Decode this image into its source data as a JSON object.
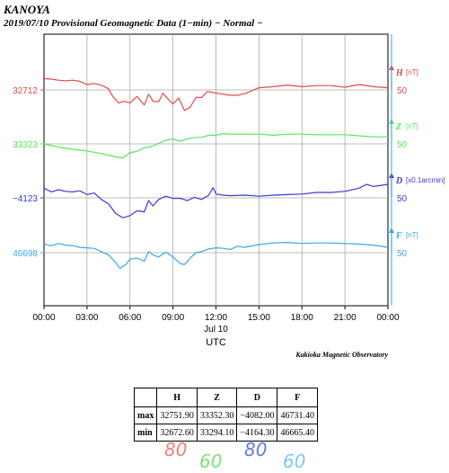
{
  "header": {
    "station": "KANOYA",
    "subtitle": "2019/07/10  Provisional Geomagnetic Data (1−min)  − Normal −"
  },
  "chart_data": {
    "type": "line",
    "x_tick_labels": [
      "00:00",
      "03:00",
      "06:00",
      "09:00",
      "12:00",
      "15:00",
      "18:00",
      "21:00",
      "00:00"
    ],
    "x_date_label": "Jul 10",
    "xlabel": "UTC",
    "x_range_hours": [
      0,
      24
    ],
    "grid": true,
    "series": [
      {
        "name": "H",
        "unit": "[nT]",
        "color": "#e8474b",
        "left_tick": "32712",
        "right_tick": "50",
        "points": [
          [
            0,
            32733
          ],
          [
            0.5,
            32732
          ],
          [
            1,
            32730
          ],
          [
            1.5,
            32729
          ],
          [
            2,
            32730
          ],
          [
            2.5,
            32728
          ],
          [
            3,
            32722
          ],
          [
            3.5,
            32724
          ],
          [
            4,
            32721
          ],
          [
            4.5,
            32714
          ],
          [
            4.8,
            32700
          ],
          [
            5.2,
            32688
          ],
          [
            5.6,
            32691
          ],
          [
            6,
            32688
          ],
          [
            6.5,
            32700
          ],
          [
            7,
            32684
          ],
          [
            7.3,
            32704
          ],
          [
            7.6,
            32691
          ],
          [
            8,
            32690
          ],
          [
            8.3,
            32706
          ],
          [
            8.7,
            32694
          ],
          [
            9,
            32686
          ],
          [
            9.4,
            32697
          ],
          [
            9.8,
            32674
          ],
          [
            10.2,
            32680
          ],
          [
            10.6,
            32698
          ],
          [
            11,
            32698
          ],
          [
            11.4,
            32709
          ],
          [
            11.8,
            32707
          ],
          [
            12.3,
            32705
          ],
          [
            13,
            32702
          ],
          [
            13.5,
            32702
          ],
          [
            14,
            32705
          ],
          [
            15,
            32716
          ],
          [
            16,
            32718
          ],
          [
            17,
            32721
          ],
          [
            18,
            32718
          ],
          [
            19,
            32720
          ],
          [
            20,
            32720
          ],
          [
            21,
            32717
          ],
          [
            22,
            32722
          ],
          [
            23,
            32718
          ],
          [
            24,
            32716
          ]
        ]
      },
      {
        "name": "Z",
        "unit": "[nT]",
        "color": "#55e855",
        "left_tick": "33323",
        "right_tick": "50",
        "points": [
          [
            0,
            33323
          ],
          [
            1,
            33317
          ],
          [
            2,
            33313
          ],
          [
            3,
            33310
          ],
          [
            4,
            33305
          ],
          [
            5,
            33299
          ],
          [
            5.5,
            33297
          ],
          [
            6,
            33307
          ],
          [
            6.5,
            33309
          ],
          [
            7,
            33316
          ],
          [
            7.5,
            33318
          ],
          [
            8,
            33324
          ],
          [
            8.5,
            33330
          ],
          [
            9,
            33332
          ],
          [
            9.5,
            33328
          ],
          [
            10,
            33332
          ],
          [
            10.5,
            33335
          ],
          [
            11,
            33335
          ],
          [
            11.5,
            33339
          ],
          [
            12,
            33339
          ],
          [
            12.5,
            33342
          ],
          [
            13,
            33341
          ],
          [
            14,
            33341
          ],
          [
            15,
            33341
          ],
          [
            16,
            33339
          ],
          [
            17,
            33341
          ],
          [
            18,
            33341
          ],
          [
            19,
            33340
          ],
          [
            20,
            33340
          ],
          [
            21,
            33340
          ],
          [
            22,
            33338
          ],
          [
            23,
            33336
          ],
          [
            24,
            33336
          ]
        ]
      },
      {
        "name": "D",
        "unit": "[x0.1arcmin]",
        "color": "#3b3bd8",
        "left_tick": "−4123",
        "right_tick": "50",
        "points": [
          [
            0,
            -4105
          ],
          [
            0.5,
            -4112
          ],
          [
            1,
            -4108
          ],
          [
            1.5,
            -4111
          ],
          [
            2,
            -4112
          ],
          [
            2.5,
            -4110
          ],
          [
            3,
            -4117
          ],
          [
            3.5,
            -4114
          ],
          [
            4,
            -4126
          ],
          [
            4.5,
            -4134
          ],
          [
            5,
            -4152
          ],
          [
            5.5,
            -4160
          ],
          [
            6,
            -4156
          ],
          [
            6.5,
            -4147
          ],
          [
            7,
            -4149
          ],
          [
            7.3,
            -4128
          ],
          [
            7.6,
            -4138
          ],
          [
            8,
            -4126
          ],
          [
            8.5,
            -4120
          ],
          [
            9,
            -4124
          ],
          [
            9.5,
            -4124
          ],
          [
            10,
            -4128
          ],
          [
            10.5,
            -4122
          ],
          [
            11,
            -4126
          ],
          [
            11.5,
            -4118
          ],
          [
            11.8,
            -4104
          ],
          [
            12,
            -4116
          ],
          [
            12.5,
            -4118
          ],
          [
            13,
            -4119
          ],
          [
            14,
            -4118
          ],
          [
            15,
            -4120
          ],
          [
            16,
            -4118
          ],
          [
            17,
            -4117
          ],
          [
            18,
            -4116
          ],
          [
            19,
            -4113
          ],
          [
            20,
            -4113
          ],
          [
            21,
            -4111
          ],
          [
            22,
            -4105
          ],
          [
            22.5,
            -4098
          ],
          [
            23,
            -4102
          ],
          [
            24,
            -4098
          ]
        ]
      },
      {
        "name": "F",
        "unit": "[nT]",
        "color": "#3aa7e8",
        "left_tick": "46698",
        "right_tick": "50",
        "points": [
          [
            0,
            46714
          ],
          [
            0.5,
            46711
          ],
          [
            1,
            46715
          ],
          [
            1.5,
            46712
          ],
          [
            2,
            46711
          ],
          [
            2.5,
            46708
          ],
          [
            3,
            46707
          ],
          [
            3.5,
            46706
          ],
          [
            4,
            46700
          ],
          [
            4.5,
            46694
          ],
          [
            5,
            46680
          ],
          [
            5.3,
            46669
          ],
          [
            5.7,
            46676
          ],
          [
            6,
            46686
          ],
          [
            6.5,
            46688
          ],
          [
            7,
            46682
          ],
          [
            7.3,
            46700
          ],
          [
            7.6,
            46694
          ],
          [
            8,
            46690
          ],
          [
            8.5,
            46699
          ],
          [
            9,
            46690
          ],
          [
            9.5,
            46678
          ],
          [
            9.8,
            46676
          ],
          [
            10.2,
            46688
          ],
          [
            10.6,
            46698
          ],
          [
            11,
            46700
          ],
          [
            11.5,
            46705
          ],
          [
            12,
            46707
          ],
          [
            12.5,
            46706
          ],
          [
            13,
            46704
          ],
          [
            13.5,
            46710
          ],
          [
            14,
            46708
          ],
          [
            15,
            46713
          ],
          [
            16,
            46716
          ],
          [
            17,
            46717
          ],
          [
            18,
            46715
          ],
          [
            19,
            46716
          ],
          [
            20,
            46716
          ],
          [
            21,
            46715
          ],
          [
            22,
            46714
          ],
          [
            23,
            46712
          ],
          [
            24,
            46708
          ]
        ]
      }
    ]
  },
  "credit": "Kakioka Magnetic Observatory",
  "stats": {
    "headers": [
      "",
      "H",
      "Z",
      "D",
      "F"
    ],
    "rows": [
      {
        "label": "max",
        "values": [
          "32751.90",
          "33352.30",
          "−4082.00",
          "46731.40"
        ]
      },
      {
        "label": "min",
        "values": [
          "32672.60",
          "33294.10",
          "−4164.30",
          "46665.40"
        ]
      }
    ]
  },
  "scale_notes": [
    {
      "text": "80",
      "color": "#f08080"
    },
    {
      "text": "60",
      "color": "#7fe07f"
    },
    {
      "text": "80",
      "color": "#5e7fd6"
    },
    {
      "text": "60",
      "color": "#7fc8ef"
    }
  ]
}
